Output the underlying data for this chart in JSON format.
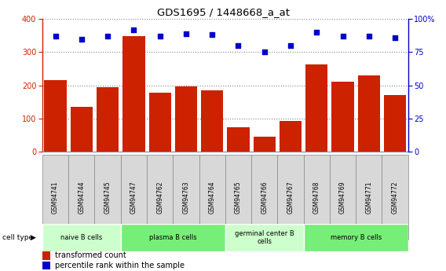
{
  "title": "GDS1695 / 1448668_a_at",
  "samples": [
    "GSM94741",
    "GSM94744",
    "GSM94745",
    "GSM94747",
    "GSM94762",
    "GSM94763",
    "GSM94764",
    "GSM94765",
    "GSM94766",
    "GSM94767",
    "GSM94768",
    "GSM94769",
    "GSM94771",
    "GSM94772"
  ],
  "bar_values": [
    215,
    135,
    195,
    348,
    177,
    198,
    185,
    75,
    45,
    92,
    263,
    210,
    230,
    170
  ],
  "dot_values": [
    87,
    85,
    87,
    92,
    87,
    89,
    88,
    80,
    75,
    80,
    90,
    87,
    87,
    86
  ],
  "ylim_left": [
    0,
    400
  ],
  "ylim_right": [
    0,
    100
  ],
  "yticks_left": [
    0,
    100,
    200,
    300,
    400
  ],
  "yticks_right": [
    0,
    25,
    50,
    75,
    100
  ],
  "bar_color": "#cc2200",
  "dot_color": "#0000cc",
  "grid_color": "#aaaaaa",
  "cell_groups": [
    {
      "label": "naive B cells",
      "start": 0,
      "end": 3,
      "color": "#ccffcc"
    },
    {
      "label": "plasma B cells",
      "start": 3,
      "end": 7,
      "color": "#77ee77"
    },
    {
      "label": "germinal center B\ncells",
      "start": 7,
      "end": 10,
      "color": "#ccffcc"
    },
    {
      "label": "memory B cells",
      "start": 10,
      "end": 14,
      "color": "#77ee77"
    }
  ],
  "legend_bar_label": "transformed count",
  "legend_dot_label": "percentile rank within the sample",
  "cell_type_label": "cell type"
}
